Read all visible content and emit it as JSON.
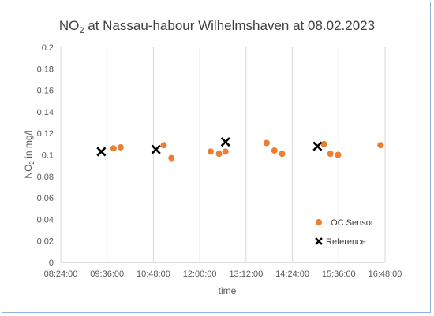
{
  "chart_data": {
    "type": "scatter",
    "title": {
      "prefix": "NO",
      "sub": "2",
      "suffix": " at Nassau-habour  Wilhelmshaven at  08.02.2023"
    },
    "xlabel": "time",
    "ylabel": {
      "prefix": "NO",
      "sub": "2",
      "suffix": " in mg/l"
    },
    "xlim": [
      "08:24:00",
      "16:48:00"
    ],
    "ylim": [
      0,
      0.2
    ],
    "x_ticks": [
      "08:24:00",
      "09:36:00",
      "10:48:00",
      "12:00:00",
      "13:12:00",
      "14:24:00",
      "15:36:00",
      "16:48:00"
    ],
    "y_ticks": [
      "0",
      "0.02",
      "0.04",
      "0.06",
      "0.08",
      "0.1",
      "0.12",
      "0.14",
      "0.16",
      "0.18",
      "0.2"
    ],
    "grid": "vertical",
    "legend_position": "bottom-right",
    "series": [
      {
        "name": "LOC Sensor",
        "marker": "circle",
        "color": "#ED7D31",
        "points": [
          {
            "x": "09:46:00",
            "y": 0.106
          },
          {
            "x": "09:57:00",
            "y": 0.107
          },
          {
            "x": "11:04:00",
            "y": 0.109
          },
          {
            "x": "11:16:00",
            "y": 0.097
          },
          {
            "x": "12:17:00",
            "y": 0.103
          },
          {
            "x": "12:30:00",
            "y": 0.101
          },
          {
            "x": "12:40:00",
            "y": 0.103
          },
          {
            "x": "13:44:00",
            "y": 0.111
          },
          {
            "x": "13:56:00",
            "y": 0.104
          },
          {
            "x": "14:08:00",
            "y": 0.101
          },
          {
            "x": "15:13:00",
            "y": 0.11
          },
          {
            "x": "15:23:00",
            "y": 0.101
          },
          {
            "x": "15:35:00",
            "y": 0.1
          },
          {
            "x": "16:41:00",
            "y": 0.109
          }
        ]
      },
      {
        "name": "Reference",
        "marker": "x",
        "color": "#000000",
        "points": [
          {
            "x": "09:27:00",
            "y": 0.103
          },
          {
            "x": "10:52:00",
            "y": 0.105
          },
          {
            "x": "12:40:00",
            "y": 0.112
          },
          {
            "x": "15:03:00",
            "y": 0.108
          }
        ]
      }
    ]
  },
  "colors": {
    "frame_border": "#8fb4dc",
    "grid": "#d9d9d9",
    "axis": "#bfbfbf",
    "text": "#595959"
  }
}
